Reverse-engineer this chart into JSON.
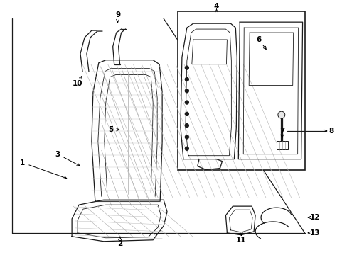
{
  "background_color": "#ffffff",
  "fig_width": 4.89,
  "fig_height": 3.6,
  "dpi": 100,
  "line_color": "#1a1a1a",
  "gray_color": "#888888",
  "light_gray": "#cccccc"
}
